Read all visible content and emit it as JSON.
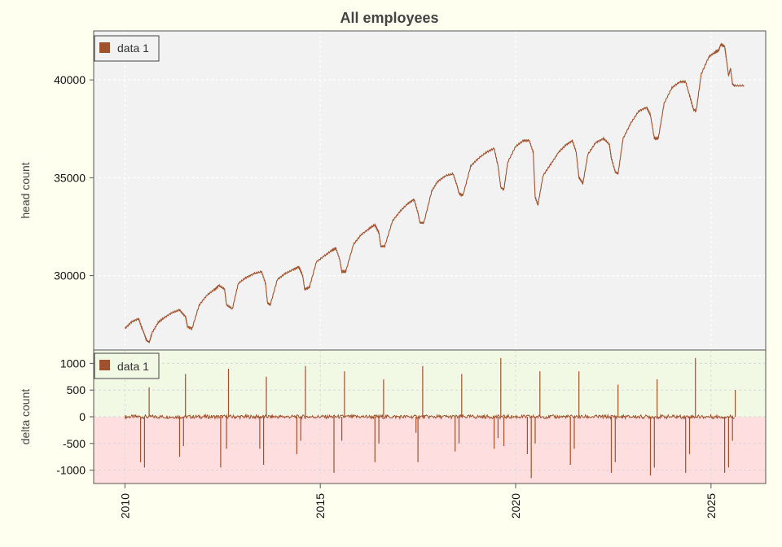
{
  "colors": {
    "page_background": "#FFFFF0",
    "panel_background": "#F2F2F2",
    "positive_band": "#F1F8E4",
    "negative_band": "#FEDEDE",
    "series": "#A0522D",
    "grid": "#FFFFFF"
  },
  "chart_data": [
    {
      "type": "line",
      "title": "All employees",
      "ylabel": "head count",
      "xlim": [
        2009.2,
        2026.4
      ],
      "ylim": [
        26200,
        42500
      ],
      "yticks": [
        30000,
        35000,
        40000
      ],
      "ytick_labels": [
        "30000",
        "35000",
        "40000"
      ],
      "grid": true,
      "legend": {
        "placement": "top-left",
        "entries": [
          "data 1"
        ]
      },
      "series": [
        {
          "name": "data 1",
          "segments": [
            [
              [
                2010.0,
                27300
              ],
              [
                2010.18,
                27650
              ],
              [
                2010.35,
                27800
              ],
              [
                2010.42,
                27400
              ],
              [
                2010.5,
                27000
              ],
              [
                2010.55,
                26700
              ],
              [
                2010.62,
                26600
              ],
              [
                2010.7,
                27100
              ],
              [
                2010.85,
                27600
              ],
              [
                2011.0,
                27850
              ],
              [
                2011.2,
                28100
              ],
              [
                2011.4,
                28250
              ],
              [
                2011.55,
                27900
              ],
              [
                2011.6,
                27400
              ],
              [
                2011.72,
                27300
              ],
              [
                2011.9,
                28500
              ],
              [
                2012.1,
                29000
              ],
              [
                2012.3,
                29300
              ],
              [
                2012.4,
                29500
              ],
              [
                2012.55,
                29300
              ],
              [
                2012.6,
                28500
              ],
              [
                2012.75,
                28300
              ],
              [
                2012.9,
                29600
              ],
              [
                2013.1,
                29900
              ],
              [
                2013.3,
                30100
              ],
              [
                2013.5,
                30200
              ],
              [
                2013.6,
                29600
              ],
              [
                2013.65,
                28600
              ],
              [
                2013.72,
                28500
              ],
              [
                2013.9,
                29800
              ],
              [
                2014.1,
                30100
              ],
              [
                2014.3,
                30300
              ],
              [
                2014.45,
                30450
              ],
              [
                2014.55,
                30000
              ],
              [
                2014.6,
                29300
              ],
              [
                2014.72,
                29400
              ],
              [
                2014.9,
                30700
              ],
              [
                2015.1,
                31000
              ],
              [
                2015.3,
                31300
              ],
              [
                2015.4,
                31400
              ],
              [
                2015.5,
                30800
              ],
              [
                2015.55,
                30200
              ],
              [
                2015.65,
                30200
              ],
              [
                2015.85,
                31600
              ],
              [
                2016.05,
                32100
              ],
              [
                2016.25,
                32400
              ],
              [
                2016.4,
                32600
              ],
              [
                2016.5,
                32200
              ],
              [
                2016.55,
                31500
              ],
              [
                2016.65,
                31500
              ],
              [
                2016.85,
                32800
              ],
              [
                2017.05,
                33300
              ],
              [
                2017.25,
                33700
              ],
              [
                2017.4,
                33900
              ],
              [
                2017.5,
                33200
              ],
              [
                2017.55,
                32700
              ],
              [
                2017.65,
                32700
              ],
              [
                2017.85,
                34300
              ],
              [
                2018.0,
                34800
              ],
              [
                2018.2,
                35100
              ],
              [
                2018.4,
                35200
              ],
              [
                2018.5,
                34600
              ],
              [
                2018.55,
                34200
              ],
              [
                2018.65,
                34100
              ],
              [
                2018.85,
                35600
              ],
              [
                2019.05,
                36000
              ],
              [
                2019.25,
                36300
              ],
              [
                2019.45,
                36500
              ],
              [
                2019.55,
                35600
              ],
              [
                2019.62,
                34500
              ],
              [
                2019.7,
                34400
              ],
              [
                2019.8,
                35800
              ],
              [
                2020.0,
                36600
              ],
              [
                2020.2,
                36900
              ],
              [
                2020.35,
                36900
              ],
              [
                2020.45,
                36300
              ],
              [
                2020.5,
                34000
              ],
              [
                2020.57,
                33600
              ],
              [
                2020.7,
                35100
              ],
              [
                2020.9,
                35700
              ],
              [
                2021.1,
                36300
              ],
              [
                2021.3,
                36700
              ],
              [
                2021.45,
                36900
              ],
              [
                2021.55,
                36300
              ],
              [
                2021.62,
                35000
              ],
              [
                2021.72,
                34700
              ],
              [
                2021.85,
                36200
              ],
              [
                2022.05,
                36800
              ],
              [
                2022.25,
                37000
              ],
              [
                2022.4,
                36700
              ],
              [
                2022.45,
                36000
              ],
              [
                2022.55,
                35300
              ],
              [
                2022.62,
                35200
              ],
              [
                2022.75,
                37000
              ],
              [
                2022.95,
                37800
              ],
              [
                2023.15,
                38400
              ],
              [
                2023.35,
                38600
              ],
              [
                2023.45,
                38200
              ],
              [
                2023.55,
                37000
              ],
              [
                2023.65,
                37000
              ],
              [
                2023.8,
                38800
              ],
              [
                2024.0,
                39600
              ],
              [
                2024.2,
                39900
              ],
              [
                2024.35,
                39900
              ],
              [
                2024.45,
                39200
              ],
              [
                2024.55,
                38500
              ],
              [
                2024.62,
                38400
              ],
              [
                2024.75,
                40300
              ],
              [
                2024.95,
                41200
              ],
              [
                2025.1,
                41400
              ],
              [
                2025.2,
                41500
              ],
              [
                2025.25,
                41800
              ],
              [
                2025.35,
                41700
              ],
              [
                2025.4,
                41000
              ],
              [
                2025.45,
                40200
              ],
              [
                2025.5,
                40600
              ],
              [
                2025.55,
                39800
              ],
              [
                2025.6,
                39700
              ],
              [
                2025.85,
                39700
              ]
            ]
          ]
        }
      ]
    },
    {
      "type": "line",
      "xlabel": "",
      "ylabel": "delta count",
      "xlim": [
        2009.2,
        2026.4
      ],
      "ylim": [
        -1250,
        1250
      ],
      "yticks": [
        -1000,
        -500,
        0,
        500,
        1000
      ],
      "ytick_labels": [
        "-1000",
        "-500",
        "0",
        "500",
        "1000"
      ],
      "xticks": [
        2010,
        2015,
        2020,
        2025
      ],
      "xtick_labels": [
        "2010",
        "2015",
        "2020",
        "2025"
      ],
      "grid": true,
      "legend": {
        "placement": "top-left",
        "entries": [
          "data 1"
        ]
      },
      "baseline_range": [
        2010.0,
        2025.6
      ],
      "series": [
        {
          "name": "data 1",
          "spikes": [
            [
              2010.4,
              -850
            ],
            [
              2010.5,
              -950
            ],
            [
              2010.62,
              550
            ],
            [
              2011.4,
              -750
            ],
            [
              2011.5,
              -550
            ],
            [
              2011.55,
              800
            ],
            [
              2012.45,
              -950
            ],
            [
              2012.65,
              900
            ],
            [
              2012.6,
              -600
            ],
            [
              2013.45,
              -600
            ],
            [
              2013.55,
              -900
            ],
            [
              2013.62,
              750
            ],
            [
              2014.4,
              -700
            ],
            [
              2014.5,
              -450
            ],
            [
              2014.62,
              950
            ],
            [
              2015.35,
              -1050
            ],
            [
              2015.62,
              850
            ],
            [
              2015.55,
              -450
            ],
            [
              2016.4,
              -850
            ],
            [
              2016.62,
              700
            ],
            [
              2016.5,
              -500
            ],
            [
              2017.5,
              -850
            ],
            [
              2017.62,
              950
            ],
            [
              2017.45,
              -300
            ],
            [
              2018.45,
              -650
            ],
            [
              2018.55,
              -500
            ],
            [
              2018.62,
              800
            ],
            [
              2019.45,
              -600
            ],
            [
              2019.55,
              -400
            ],
            [
              2019.62,
              1100
            ],
            [
              2019.7,
              -550
            ],
            [
              2020.3,
              -700
            ],
            [
              2020.4,
              -1150
            ],
            [
              2020.5,
              -500
            ],
            [
              2020.62,
              850
            ],
            [
              2021.4,
              -900
            ],
            [
              2021.5,
              -600
            ],
            [
              2021.62,
              850
            ],
            [
              2022.45,
              -1050
            ],
            [
              2022.55,
              -850
            ],
            [
              2022.62,
              600
            ],
            [
              2023.45,
              -1100
            ],
            [
              2023.55,
              -950
            ],
            [
              2023.62,
              700
            ],
            [
              2024.35,
              -1050
            ],
            [
              2024.45,
              -700
            ],
            [
              2024.6,
              1100
            ],
            [
              2025.35,
              -1050
            ],
            [
              2025.45,
              -950
            ],
            [
              2025.55,
              -450
            ],
            [
              2025.62,
              500
            ]
          ]
        }
      ]
    }
  ]
}
